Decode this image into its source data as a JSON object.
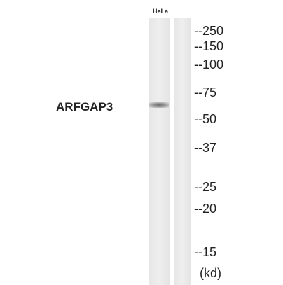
{
  "lanes": [
    "HeLa"
  ],
  "protein": "ARFGAP3",
  "markers": [
    "--250",
    "--150",
    "--100",
    "--75",
    "--50",
    "--37",
    "--25",
    "--20",
    "--15"
  ],
  "unit": "(kd)"
}
